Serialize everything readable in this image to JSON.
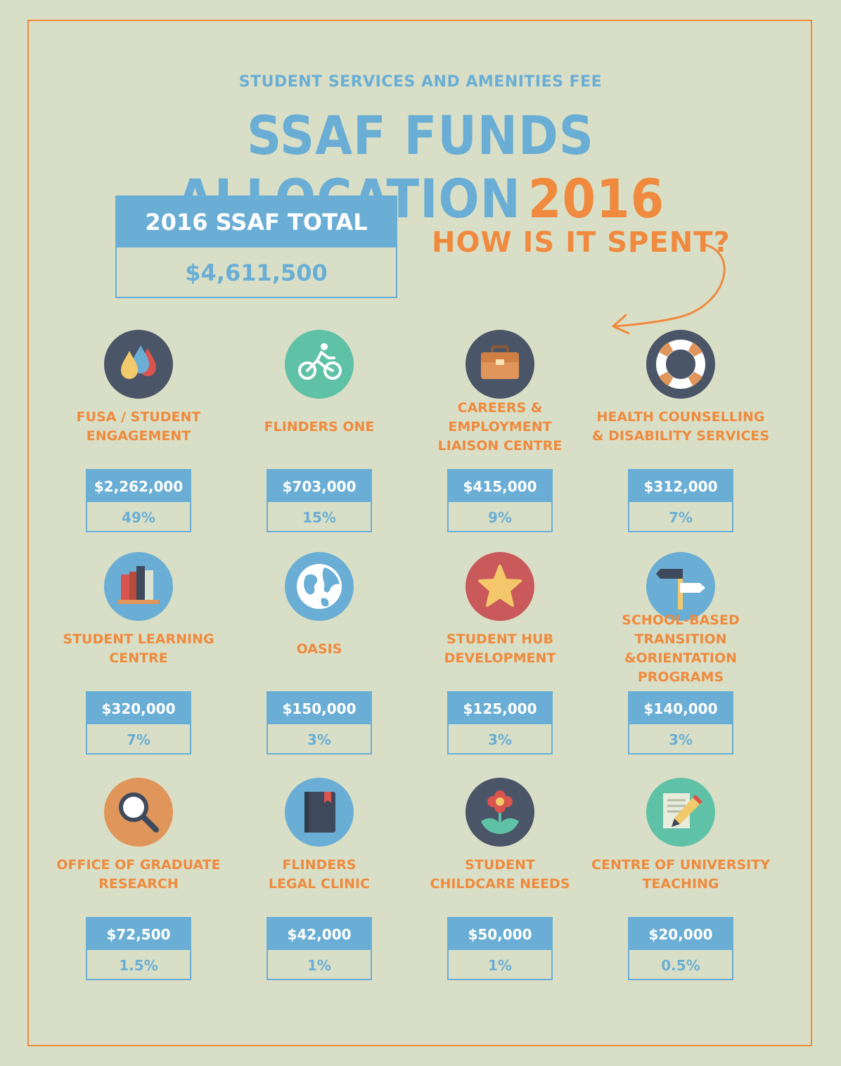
{
  "header": {
    "subtitle": "STUDENT SERVICES AND AMENITIES FEE",
    "title_main": "SSAF FUNDS ALLOCATION",
    "title_year": "2016"
  },
  "total": {
    "label": "2016 SSAF TOTAL",
    "value": "$4,611,500"
  },
  "how_label": "HOW IS IT SPENT?",
  "colors": {
    "background": "#d9dfc6",
    "blue": "#6aaed5",
    "orange": "#ef8a3e",
    "navy": "#4a5568"
  },
  "items": [
    {
      "name": "FUSA / STUDENT\nENGAGEMENT",
      "amount": "$2,262,000",
      "percent": "49%",
      "icon": "water-drops-icon"
    },
    {
      "name": "FLINDERS ONE",
      "amount": "$703,000",
      "percent": "15%",
      "icon": "cyclist-icon"
    },
    {
      "name": "CAREERS & EMPLOYMENT\nLIAISON CENTRE",
      "amount": "$415,000",
      "percent": "9%",
      "icon": "briefcase-icon"
    },
    {
      "name": "HEALTH COUNSELLING\n& DISABILITY SERVICES",
      "amount": "$312,000",
      "percent": "7%",
      "icon": "lifebuoy-icon"
    },
    {
      "name": "STUDENT LEARNING\nCENTRE",
      "amount": "$320,000",
      "percent": "7%",
      "icon": "books-icon"
    },
    {
      "name": "OASIS",
      "amount": "$150,000",
      "percent": "3%",
      "icon": "globe-icon"
    },
    {
      "name": "STUDENT HUB\nDEVELOPMENT",
      "amount": "$125,000",
      "percent": "3%",
      "icon": "star-icon"
    },
    {
      "name": "SCHOOL-BASED TRANSITION\n&ORIENTATION PROGRAMS",
      "amount": "$140,000",
      "percent": "3%",
      "icon": "signpost-icon"
    },
    {
      "name": "OFFICE OF GRADUATE\nRESEARCH",
      "amount": "$72,500",
      "percent": "1.5%",
      "icon": "magnifier-icon"
    },
    {
      "name": "FLINDERS\nLEGAL CLINIC",
      "amount": "$42,000",
      "percent": "1%",
      "icon": "notebook-icon"
    },
    {
      "name": "STUDENT\nCHILDCARE NEEDS",
      "amount": "$50,000",
      "percent": "1%",
      "icon": "flower-icon"
    },
    {
      "name": "CENTRE OF UNIVERSITY\nTEACHING",
      "amount": "$20,000",
      "percent": "0.5%",
      "icon": "pencil-paper-icon"
    }
  ]
}
